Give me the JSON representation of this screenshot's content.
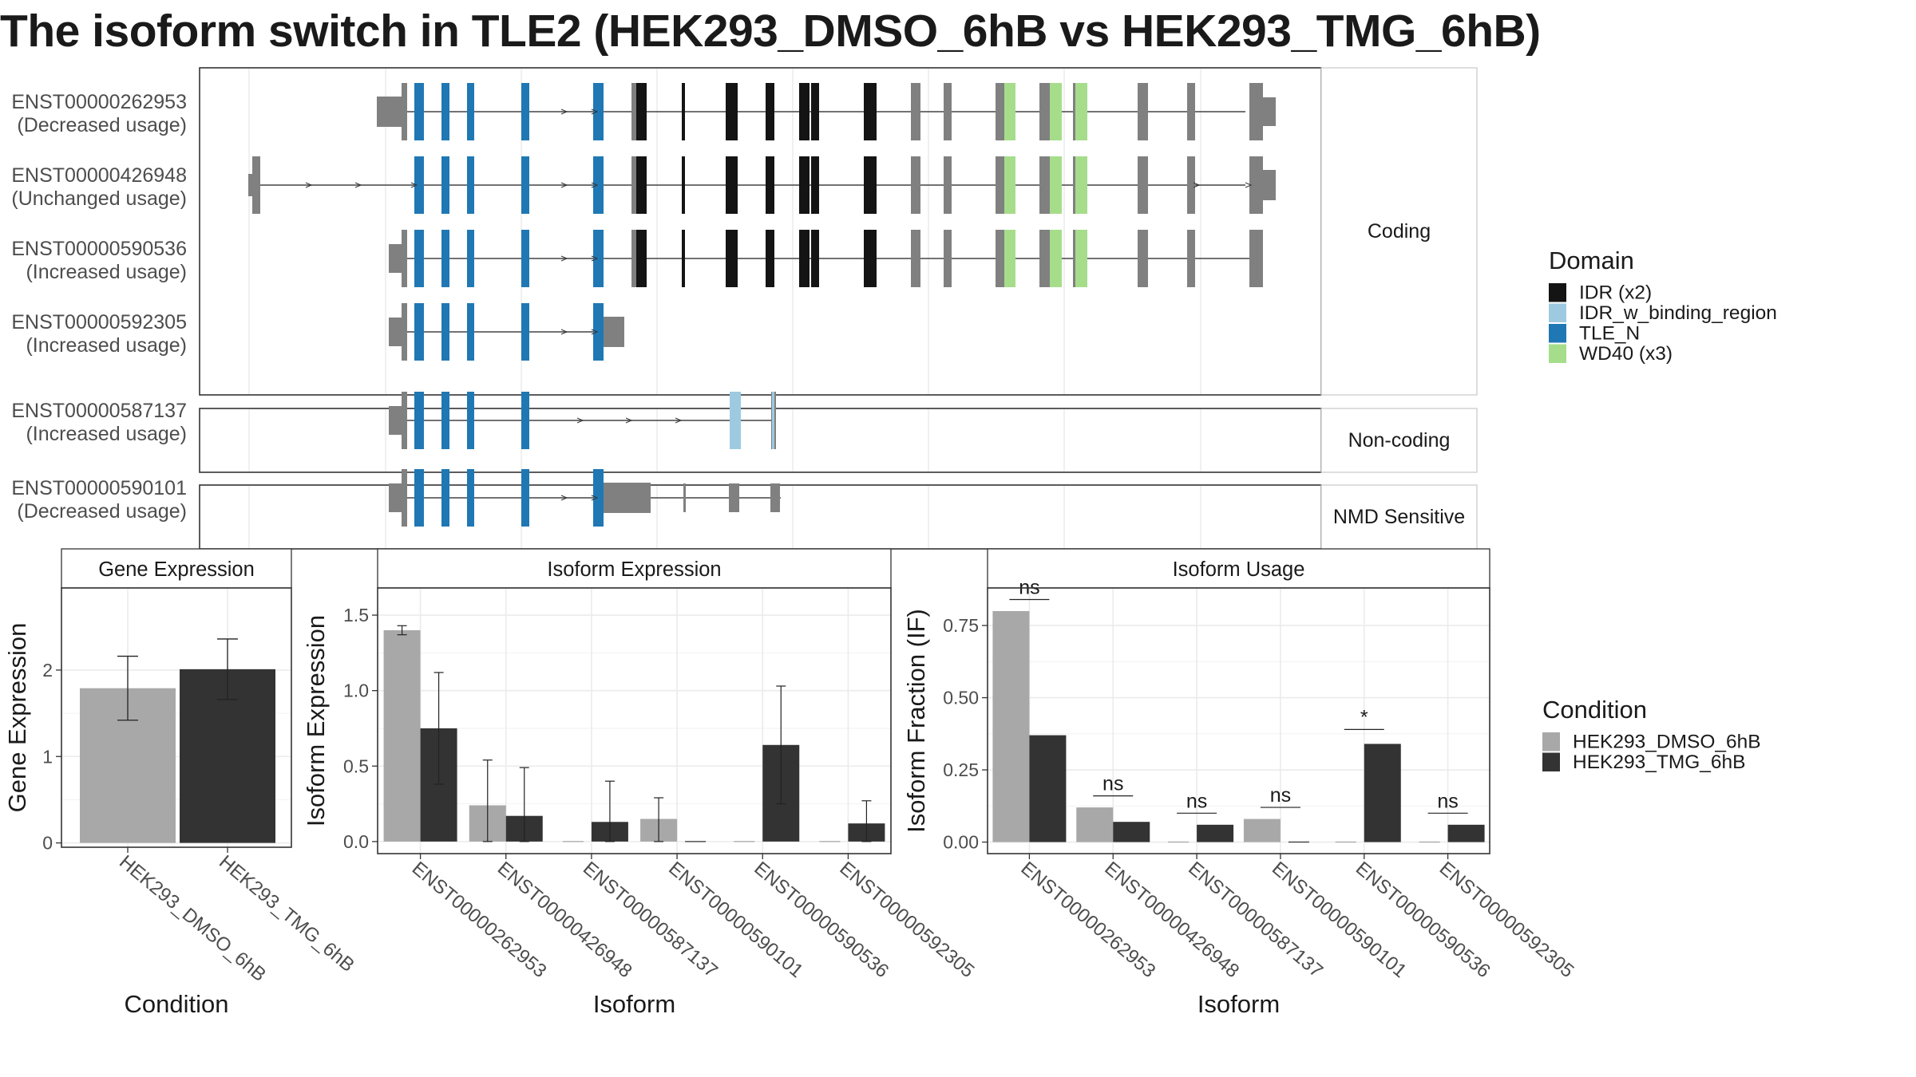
{
  "title": "The isoform switch in TLE2 (HEK293_DMSO_6hB vs HEK293_TMG_6hB)",
  "colors": {
    "idr": "#141414",
    "idr_binding": "#9ecae1",
    "tle_n": "#1f78b4",
    "wd40": "#a6dd8b",
    "exon": "#808080",
    "dmso": "#a8a8a8",
    "tmg": "#333333"
  },
  "structure": {
    "facets": [
      {
        "label": "Coding",
        "transcripts": [
          0,
          1,
          2,
          3
        ]
      },
      {
        "label": "Non-coding",
        "transcripts": [
          4
        ]
      },
      {
        "label": "NMD Sensitive",
        "transcripts": [
          5
        ]
      }
    ],
    "transcripts": [
      {
        "id": "ENST00000262953",
        "usage": "(Decreased usage)",
        "model": "full",
        "start_exon": "standard",
        "end": "extended"
      },
      {
        "id": "ENST00000426948",
        "usage": "(Unchanged usage)",
        "model": "full",
        "start_exon": "far",
        "end": "extended"
      },
      {
        "id": "ENST00000590536",
        "usage": "(Increased usage)",
        "model": "full",
        "start_exon": "standard",
        "end": "short"
      },
      {
        "id": "ENST00000592305",
        "usage": "(Increased usage)",
        "model": "truncated",
        "start_exon": "standard",
        "end": "stop"
      },
      {
        "id": "ENST00000587137",
        "usage": "(Increased usage)",
        "model": "noncoding",
        "start_exon": "standard",
        "end": "noncoding"
      },
      {
        "id": "ENST00000590101",
        "usage": "(Decreased usage)",
        "model": "nmd",
        "start_exon": "standard",
        "end": "nmd"
      }
    ]
  },
  "legend_domain": {
    "title": "Domain",
    "items": [
      {
        "label": "IDR (x2)",
        "color": "#141414"
      },
      {
        "label": "IDR_w_binding_region",
        "color": "#9ecae1"
      },
      {
        "label": "TLE_N",
        "color": "#1f78b4"
      },
      {
        "label": "WD40 (x3)",
        "color": "#a6dd8b"
      }
    ]
  },
  "legend_condition": {
    "title": "Condition",
    "items": [
      {
        "label": "HEK293_DMSO_6hB",
        "color": "#a8a8a8"
      },
      {
        "label": "HEK293_TMG_6hB",
        "color": "#333333"
      }
    ]
  },
  "chart_data": [
    {
      "type": "bar",
      "title": "Gene Expression",
      "xlabel": "Condition",
      "ylabel": "Gene Expression",
      "ylim": [
        -0.05,
        2.95
      ],
      "yticks": [
        0,
        1,
        2
      ],
      "categories": [
        "HEK293_DMSO_6hB",
        "HEK293_TMG_6hB"
      ],
      "values": [
        1.79,
        2.01
      ],
      "errors": [
        [
          1.42,
          2.16
        ],
        [
          1.66,
          2.36
        ]
      ],
      "colors": [
        "#a8a8a8",
        "#333333"
      ]
    },
    {
      "type": "bar",
      "title": "Isoform Expression",
      "xlabel": "Isoform",
      "ylabel": "Isoform Expression",
      "ylim": [
        -0.08,
        1.68
      ],
      "yticks": [
        0.0,
        0.5,
        1.0,
        1.5
      ],
      "ytick_labels": [
        "0.0",
        "0.5",
        "1.0",
        "1.5"
      ],
      "categories": [
        "ENST00000262953",
        "ENST00000426948",
        "ENST00000587137",
        "ENST00000590101",
        "ENST00000590536",
        "ENST00000592305"
      ],
      "series": [
        {
          "name": "HEK293_DMSO_6hB",
          "values": [
            1.4,
            0.24,
            0.0,
            0.15,
            0.0,
            0.0
          ],
          "errors": [
            [
              1.37,
              1.43
            ],
            [
              0.0,
              0.54
            ],
            null,
            [
              0.0,
              0.29
            ],
            null,
            null
          ]
        },
        {
          "name": "HEK293_TMG_6hB",
          "values": [
            0.75,
            0.17,
            0.13,
            0.0,
            0.64,
            0.12
          ],
          "errors": [
            [
              0.38,
              1.12
            ],
            [
              0.0,
              0.49
            ],
            [
              0.0,
              0.4
            ],
            null,
            [
              0.25,
              1.03
            ],
            [
              0.0,
              0.27
            ]
          ]
        }
      ]
    },
    {
      "type": "bar",
      "title": "Isoform Usage",
      "xlabel": "Isoform",
      "ylabel": "Isoform Fraction (IF)",
      "ylim": [
        -0.04,
        0.88
      ],
      "yticks": [
        0.0,
        0.25,
        0.5,
        0.75
      ],
      "ytick_labels": [
        "0.00",
        "0.25",
        "0.50",
        "0.75"
      ],
      "categories": [
        "ENST00000262953",
        "ENST00000426948",
        "ENST00000587137",
        "ENST00000590101",
        "ENST00000590536",
        "ENST00000592305"
      ],
      "series": [
        {
          "name": "HEK293_DMSO_6hB",
          "values": [
            0.8,
            0.12,
            0.0,
            0.08,
            0.0,
            0.0
          ]
        },
        {
          "name": "HEK293_TMG_6hB",
          "values": [
            0.37,
            0.07,
            0.06,
            0.0,
            0.34,
            0.06
          ]
        }
      ],
      "significance": [
        "ns",
        "ns",
        "ns",
        "ns",
        "*",
        "ns"
      ],
      "significance_level": [
        0.84,
        0.16,
        0.1,
        0.12,
        0.39,
        0.1
      ]
    }
  ]
}
